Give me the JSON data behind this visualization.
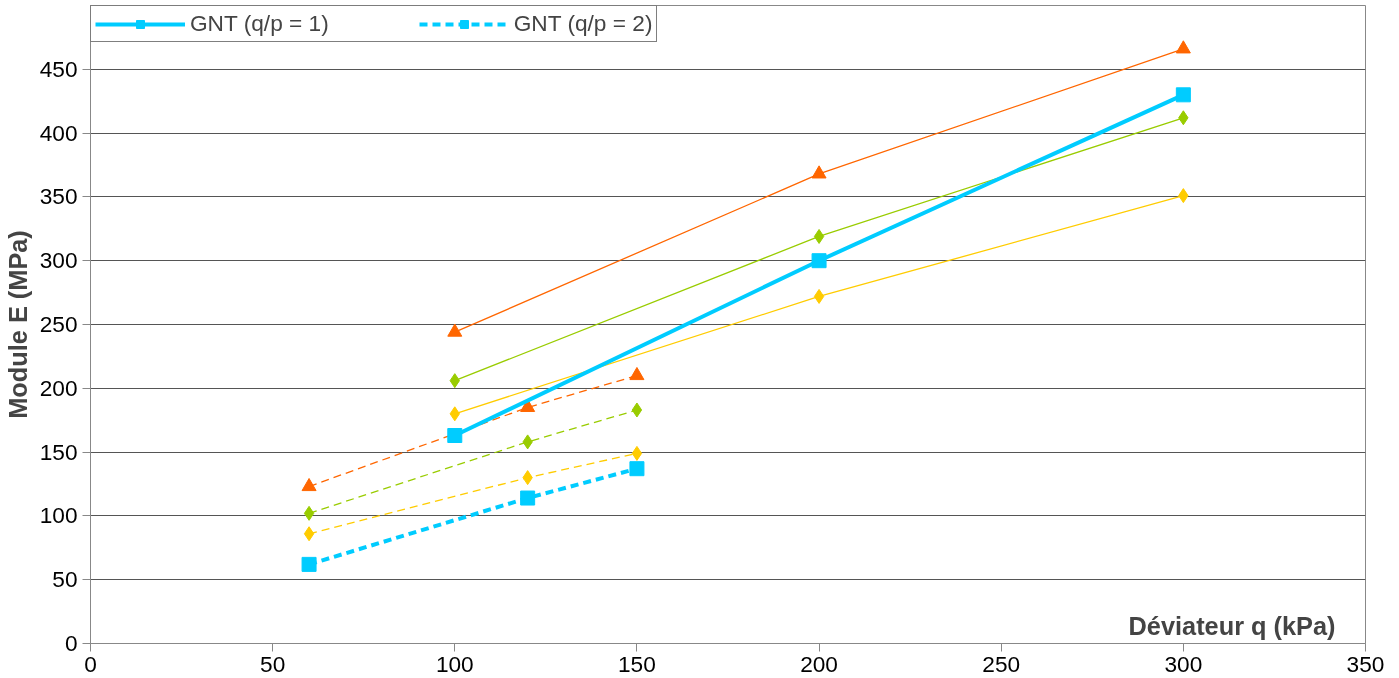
{
  "chart_data": {
    "type": "line",
    "xlabel": "Déviateur q (kPa)",
    "ylabel": "Module E (MPa)",
    "xlim": [
      0,
      350
    ],
    "xticks": [
      0,
      50,
      100,
      150,
      200,
      250,
      300,
      350
    ],
    "ylim": [
      0,
      500
    ],
    "yticks": [
      0,
      50,
      100,
      150,
      200,
      250,
      300,
      350,
      400,
      450
    ],
    "grid": "y",
    "legend": "top left",
    "series": [
      {
        "color": "#ff6600",
        "marker": "triangle",
        "line_style": "solid",
        "x": [
          100,
          200,
          300
        ],
        "values": [
          244,
          368,
          466
        ]
      },
      {
        "color": "#ff6600",
        "marker": "triangle",
        "line_style": "dashed",
        "x": [
          60,
          120,
          150
        ],
        "values": [
          123,
          185,
          210
        ]
      },
      {
        "color": "#99cc00",
        "marker": "diamond",
        "line_style": "solid",
        "x": [
          100,
          200,
          300
        ],
        "values": [
          206,
          319,
          412
        ]
      },
      {
        "color": "#99cc00",
        "marker": "diamond",
        "line_style": "dashed",
        "x": [
          60,
          120,
          150
        ],
        "values": [
          102,
          158,
          183
        ]
      },
      {
        "color": "#ffcc00",
        "marker": "diamond",
        "line_style": "solid",
        "x": [
          100,
          200,
          300
        ],
        "values": [
          180,
          272,
          351
        ]
      },
      {
        "color": "#ffcc00",
        "marker": "diamond",
        "line_style": "dashed",
        "x": [
          60,
          120,
          150
        ],
        "values": [
          86,
          130,
          149
        ]
      },
      {
        "name": "GNT (q/p = 1)",
        "color": "#00ccff",
        "marker": "square",
        "line_style": "solid",
        "x": [
          100,
          200,
          300
        ],
        "values": [
          163,
          300,
          430
        ]
      },
      {
        "name": "GNT (q/p = 2)",
        "color": "#00ccff",
        "marker": "square",
        "line_style": "dashed",
        "x": [
          60,
          120,
          150
        ],
        "values": [
          62,
          114,
          137
        ]
      }
    ]
  }
}
